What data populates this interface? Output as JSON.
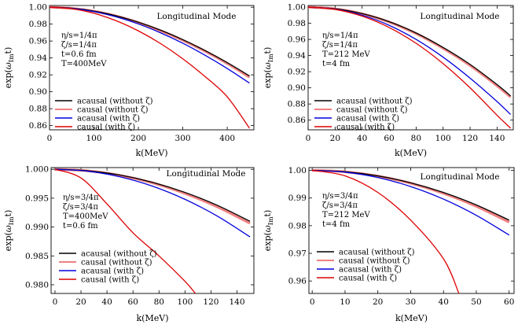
{
  "chart_data": [
    {
      "type": "line",
      "title": "Longitudinal Mode",
      "xlabel": "k(MeV)",
      "ylabel": "exp(ωImt)",
      "xlim": [
        0,
        460
      ],
      "ylim": [
        0.855,
        1.002
      ],
      "xticks": [
        "0",
        "100",
        "200",
        "300",
        "400"
      ],
      "yticks": [
        "0.86",
        "0.88",
        "0.90",
        "0.92",
        "0.94",
        "0.96",
        "0.98",
        "1.00"
      ],
      "annotations": [
        "η/s=1/4π",
        "ζ/s=1/4π",
        "t=0.6 fm",
        "T=400MeV"
      ],
      "legend_position": "lower-left",
      "series": [
        {
          "name": "acausal (without ζ)",
          "color": "#000000",
          "x": [
            0,
            50,
            100,
            150,
            200,
            250,
            300,
            350,
            400,
            450
          ],
          "y": [
            1.0,
            0.9988,
            0.9954,
            0.9898,
            0.9822,
            0.9728,
            0.9616,
            0.9488,
            0.9345,
            0.9188
          ]
        },
        {
          "name": "causal (without ζ)",
          "color": "#f08080",
          "x": [
            0,
            50,
            100,
            150,
            200,
            250,
            300,
            350,
            400,
            450
          ],
          "y": [
            1.0,
            0.9987,
            0.9953,
            0.9896,
            0.9818,
            0.9722,
            0.9609,
            0.948,
            0.9335,
            0.9172
          ]
        },
        {
          "name": "acausal (with ζ)",
          "color": "#0000dd",
          "x": [
            0,
            50,
            100,
            150,
            200,
            250,
            300,
            350,
            400,
            450
          ],
          "y": [
            1.0,
            0.9986,
            0.9948,
            0.9886,
            0.9802,
            0.9697,
            0.9574,
            0.9432,
            0.9275,
            0.9103
          ]
        },
        {
          "name": "causal (with ζ)",
          "color": "#dd0000",
          "x": [
            0,
            50,
            100,
            150,
            200,
            250,
            300,
            350,
            400,
            450
          ],
          "y": [
            1.0,
            0.9982,
            0.9928,
            0.984,
            0.972,
            0.957,
            0.939,
            0.918,
            0.894,
            0.857
          ]
        }
      ]
    },
    {
      "type": "line",
      "title": "Longitudinal Mode",
      "xlabel": "k(MeV)",
      "ylabel": "exp(ωImt)",
      "xlim": [
        0,
        152
      ],
      "ylim": [
        0.848,
        1.002
      ],
      "xticks": [
        "0",
        "20",
        "40",
        "60",
        "80",
        "100",
        "120",
        "140"
      ],
      "yticks": [
        "0.86",
        "0.88",
        "0.90",
        "0.92",
        "0.94",
        "0.96",
        "0.98",
        "1.00"
      ],
      "annotations": [
        "η/s=1/4π",
        "ζ/s=1/4π",
        "T=212 MeV",
        "t=4 fm"
      ],
      "legend_position": "lower-left",
      "series": [
        {
          "name": "acausal (without ζ)",
          "color": "#000000",
          "x": [
            0,
            20,
            40,
            60,
            80,
            100,
            120,
            140,
            150
          ],
          "y": [
            1.0,
            0.998,
            0.992,
            0.982,
            0.968,
            0.95,
            0.929,
            0.904,
            0.89
          ]
        },
        {
          "name": "causal (without ζ)",
          "color": "#f08080",
          "x": [
            0,
            20,
            40,
            60,
            80,
            100,
            120,
            140,
            150
          ],
          "y": [
            1.0,
            0.9979,
            0.9917,
            0.9815,
            0.9672,
            0.949,
            0.9277,
            0.9025,
            0.8885
          ]
        },
        {
          "name": "acausal (with ζ)",
          "color": "#0000dd",
          "x": [
            0,
            20,
            40,
            60,
            80,
            100,
            120,
            140,
            150
          ],
          "y": [
            1.0,
            0.9975,
            0.99,
            0.9775,
            0.96,
            0.938,
            0.912,
            0.883,
            0.867
          ]
        },
        {
          "name": "causal (with ζ)",
          "color": "#dd0000",
          "x": [
            0,
            20,
            40,
            60,
            80,
            100,
            120,
            140,
            150
          ],
          "y": [
            1.0,
            0.9972,
            0.9888,
            0.9748,
            0.9552,
            0.93,
            0.9,
            0.866,
            0.85
          ]
        }
      ]
    },
    {
      "type": "line",
      "title": "Longitudinal Mode",
      "xlabel": "k(MeV)",
      "ylabel": "exp(ωImt)",
      "xlim": [
        -3,
        153
      ],
      "ylim": [
        0.9785,
        1.0003
      ],
      "xticks": [
        "0",
        "20",
        "40",
        "60",
        "80",
        "100",
        "120",
        "140"
      ],
      "yticks": [
        "0.980",
        "0.985",
        "0.990",
        "0.995",
        "1.000"
      ],
      "annotations": [
        "η/s=3/4π",
        "ζ/s=3/4π",
        "T=400MeV",
        "t=0.6 fm"
      ],
      "legend_position": "lower-left",
      "series": [
        {
          "name": "acausal (without ζ)",
          "color": "#000000",
          "x": [
            0,
            25,
            50,
            75,
            100,
            125,
            150
          ],
          "y": [
            1.0,
            0.99975,
            0.999,
            0.99775,
            0.996,
            0.99375,
            0.991
          ]
        },
        {
          "name": "causal (without ζ)",
          "color": "#f08080",
          "x": [
            0,
            25,
            50,
            75,
            100,
            125,
            150
          ],
          "y": [
            1.0,
            0.99974,
            0.99895,
            0.99765,
            0.99582,
            0.99348,
            0.99065
          ]
        },
        {
          "name": "acausal (with ζ)",
          "color": "#0000dd",
          "x": [
            0,
            25,
            50,
            75,
            100,
            125,
            150
          ],
          "y": [
            1.0,
            0.99968,
            0.9987,
            0.99708,
            0.9948,
            0.99188,
            0.9883
          ]
        },
        {
          "name": "causal (with ζ)",
          "color": "#dd0000",
          "x": [
            0,
            20,
            40,
            60,
            80,
            100,
            108
          ],
          "y": [
            1.0,
            0.9985,
            0.994,
            0.989,
            0.985,
            0.9806,
            0.9785
          ]
        }
      ]
    },
    {
      "type": "line",
      "title": "Longitudinal Mode",
      "xlabel": "k(MeV)",
      "ylabel": "exp(ωImt)",
      "xlim": [
        -1,
        61.5
      ],
      "ylim": [
        0.9555,
        1.001
      ],
      "xticks": [
        "0",
        "10",
        "20",
        "30",
        "40",
        "50",
        "60"
      ],
      "yticks": [
        "0.96",
        "0.97",
        "0.98",
        "0.99",
        "1.00"
      ],
      "annotations": [
        "η/s=3/4π",
        "ζ/s=3/4π",
        "T=212 MeV",
        "t=4 fm"
      ],
      "legend_position": "lower-left",
      "series": [
        {
          "name": "acausal (without ζ)",
          "color": "#000000",
          "x": [
            0,
            10,
            20,
            30,
            40,
            50,
            60
          ],
          "y": [
            1.0,
            0.9995,
            0.998,
            0.9955,
            0.992,
            0.9875,
            0.982
          ]
        },
        {
          "name": "causal (without ζ)",
          "color": "#f08080",
          "x": [
            0,
            10,
            20,
            30,
            40,
            50,
            60
          ],
          "y": [
            1.0,
            0.99948,
            0.99792,
            0.99532,
            0.99168,
            0.987,
            0.98128
          ]
        },
        {
          "name": "acausal (with ζ)",
          "color": "#0000dd",
          "x": [
            0,
            10,
            20,
            30,
            40,
            50,
            60
          ],
          "y": [
            1.0,
            0.99935,
            0.9974,
            0.99415,
            0.9896,
            0.98375,
            0.9766
          ]
        },
        {
          "name": "causal (with ζ)",
          "color": "#dd0000",
          "x": [
            0,
            10,
            20,
            30,
            40,
            44.7
          ],
          "y": [
            1.0,
            0.998,
            0.992,
            0.982,
            0.968,
            0.9555
          ]
        }
      ]
    }
  ]
}
